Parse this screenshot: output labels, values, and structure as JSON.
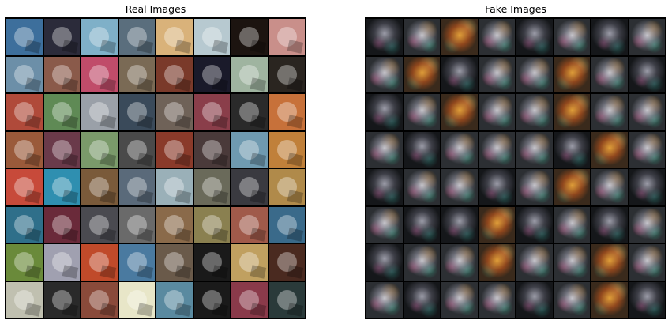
{
  "panels": {
    "real": {
      "title": "Real Images"
    },
    "fake": {
      "title": "Fake Images"
    }
  },
  "grid": {
    "rows": 8,
    "cols": 8
  },
  "colors": {
    "background": "#ffffff",
    "grid_border": "#000000",
    "real_tiles": [
      "#3d6f9c",
      "#2b2b3a",
      "#7fb0c8",
      "#5a6e7d",
      "#d9b27a",
      "#b7c9d0",
      "#1c1410",
      "#c98f8a",
      "#6c8fa8",
      "#8a5a4a",
      "#c04c6a",
      "#7a6a55",
      "#7a3a2a",
      "#1a1a2a",
      "#9fb4a0",
      "#2a2520",
      "#b04a3a",
      "#5f8a55",
      "#9aa0a8",
      "#3a4a5a",
      "#6f6258",
      "#8a3e4a",
      "#2a2a2a",
      "#c7713a",
      "#9a5a3a",
      "#6a3a4a",
      "#7a9a6a",
      "#4a4a4a",
      "#8a3a2a",
      "#4a3a3a",
      "#6f9ab0",
      "#c0803a",
      "#c74a3a",
      "#2f8fb0",
      "#7a5a3a",
      "#5a6a7a",
      "#9ab0b8",
      "#6a6a5a",
      "#3a3a40",
      "#b08a4a",
      "#2f6f8a",
      "#6a2a3a",
      "#4a4a50",
      "#6a6a6a",
      "#8a6a4a",
      "#8a8050",
      "#a05a4a",
      "#3a6a8a",
      "#6a8a3a",
      "#a0a0b0",
      "#c04a2a",
      "#4a7aa0",
      "#6a5a4a",
      "#1a1a1a",
      "#c0a060",
      "#4a2a20",
      "#c0c0b0",
      "#2a2a2a",
      "#8a4a3a",
      "#e8e6c8",
      "#5a8aa0",
      "#1a1a1a",
      "#8a3a4a",
      "#2a3a3a"
    ],
    "fake_tile_styles": [
      "dark",
      "",
      "warm",
      "",
      "dark",
      "",
      "dark",
      "",
      "",
      "warm",
      "dark",
      "",
      "",
      "warm",
      "",
      "dark",
      "dark",
      "",
      "warm",
      "",
      "",
      "warm",
      "",
      "",
      "",
      "dark",
      "",
      "",
      "",
      "dark",
      "warm",
      "",
      "dark",
      "",
      "",
      "dark",
      "",
      "warm",
      "",
      "dark",
      "",
      "dark",
      "dark",
      "warm",
      "dark",
      "",
      "dark",
      "",
      "dark",
      "",
      "",
      "warm",
      "",
      "",
      "warm",
      "",
      "",
      "dark",
      "",
      "",
      "dark",
      "",
      "warm",
      "dark"
    ]
  }
}
